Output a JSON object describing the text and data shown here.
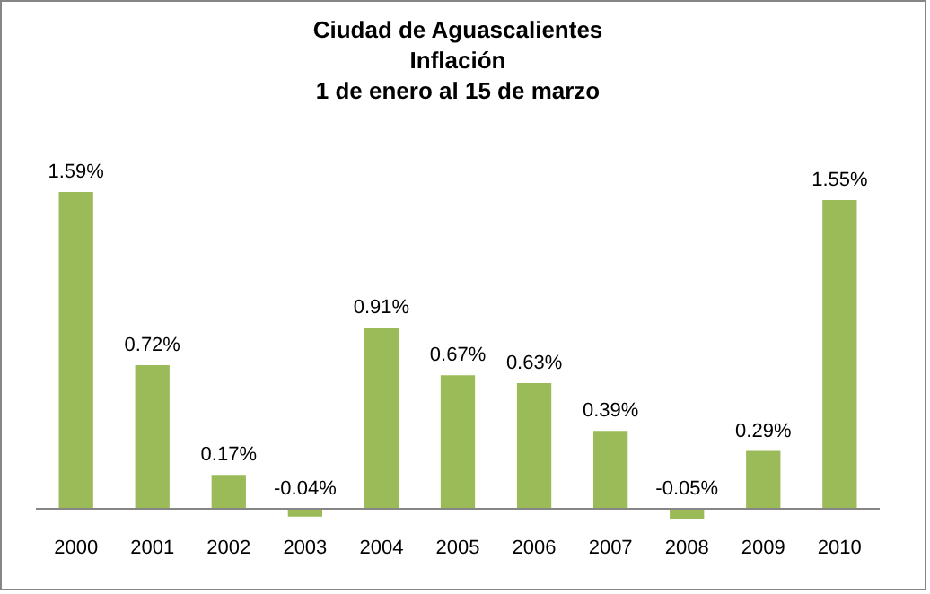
{
  "chart_data": {
    "type": "bar",
    "title": "Ciudad de Aguascalientes\nInflación\n1 de enero al 15 de marzo",
    "categories": [
      "2000",
      "2001",
      "2002",
      "2003",
      "2004",
      "2005",
      "2006",
      "2007",
      "2008",
      "2009",
      "2010"
    ],
    "values": [
      1.59,
      0.72,
      0.17,
      -0.04,
      0.91,
      0.67,
      0.63,
      0.39,
      -0.05,
      0.29,
      1.55
    ],
    "value_labels": [
      "1.59%",
      "0.72%",
      "0.17%",
      "-0.04%",
      "0.91%",
      "0.67%",
      "0.63%",
      "0.39%",
      "-0.05%",
      "0.29%",
      "1.55%"
    ],
    "color": "#9bbb59",
    "grid": false,
    "tick_labels": "x"
  }
}
